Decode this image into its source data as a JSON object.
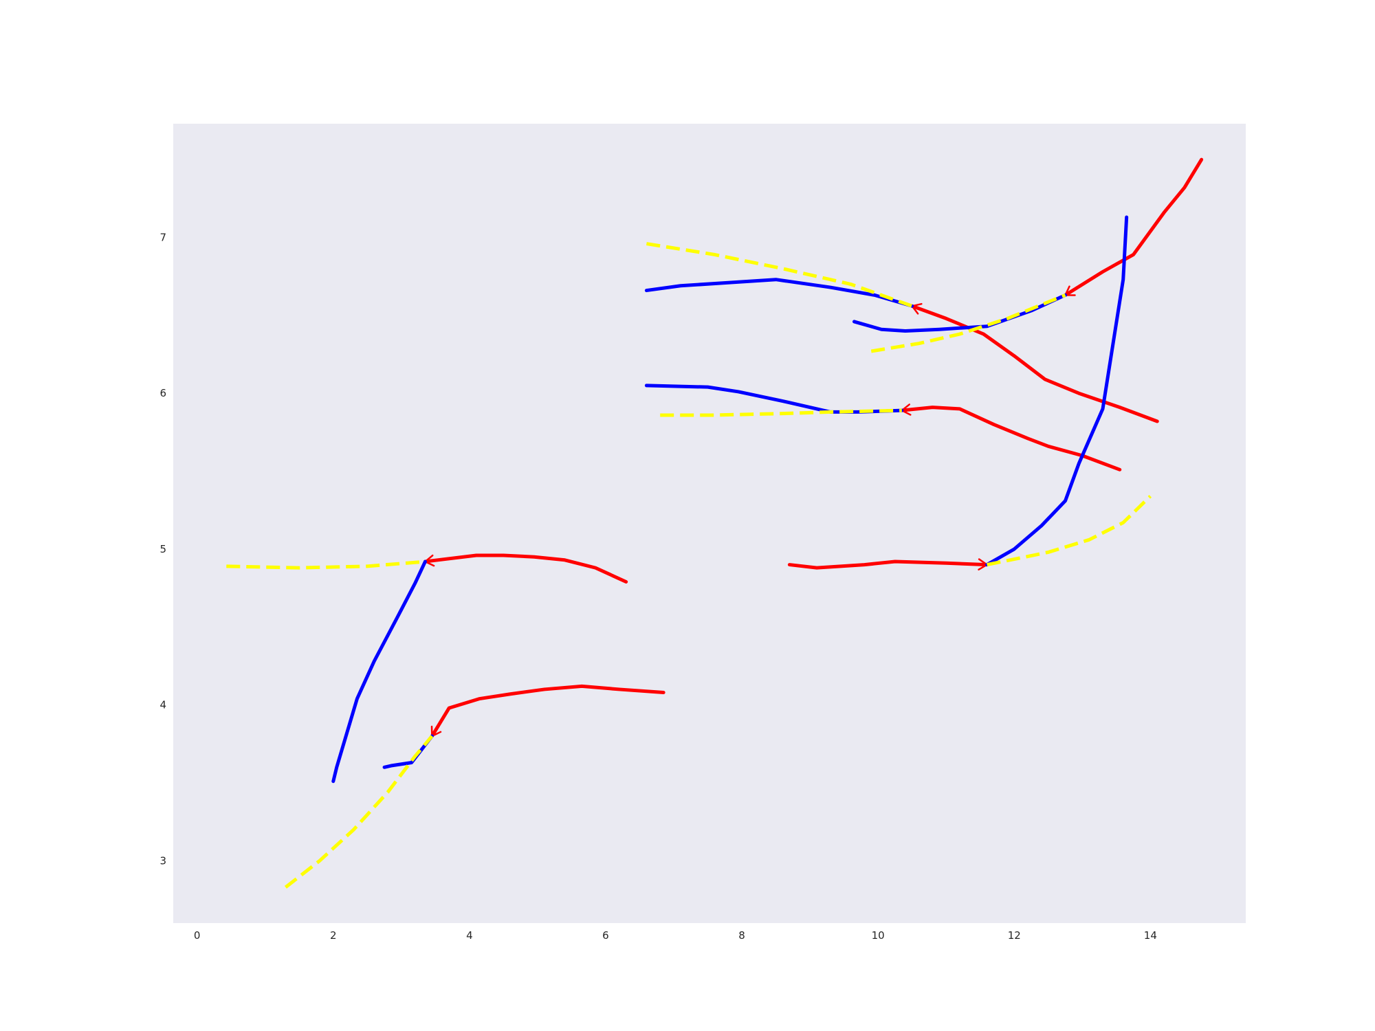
{
  "chart_data": {
    "type": "line",
    "title": "",
    "xlabel": "",
    "ylabel": "",
    "xlim": [
      -0.35,
      15.4
    ],
    "ylim": [
      2.6,
      7.73
    ],
    "x_ticks": [
      0,
      2,
      4,
      6,
      8,
      10,
      12,
      14
    ],
    "y_ticks": [
      3,
      4,
      5,
      6,
      7
    ],
    "x_tick_labels": [
      "0",
      "2",
      "4",
      "6",
      "8",
      "10",
      "12",
      "14"
    ],
    "y_tick_labels": [
      "3",
      "4",
      "5",
      "6",
      "7"
    ],
    "grid": false,
    "legend": "none",
    "colors": {
      "plot_background": "#eaeaf2",
      "blue_track": "#0000ff",
      "red_track": "#ff0000",
      "yellow_prediction": "#ffff00"
    },
    "series": [
      {
        "group": "A",
        "color": "#0000ff",
        "dash": false,
        "marker": "none",
        "points": [
          [
            2.0,
            3.51
          ],
          [
            2.05,
            3.6
          ],
          [
            2.35,
            4.04
          ],
          [
            2.6,
            4.28
          ],
          [
            2.95,
            4.57
          ],
          [
            3.2,
            4.78
          ],
          [
            3.35,
            4.92
          ]
        ]
      },
      {
        "group": "A",
        "color": "#ff0000",
        "dash": false,
        "marker": "arrow-start",
        "points": [
          [
            3.35,
            4.92
          ],
          [
            4.1,
            4.96
          ],
          [
            4.5,
            4.96
          ],
          [
            4.95,
            4.95
          ],
          [
            5.4,
            4.93
          ],
          [
            5.85,
            4.88
          ],
          [
            6.3,
            4.79
          ]
        ]
      },
      {
        "group": "A",
        "color": "#ffff00",
        "dash": true,
        "marker": "none",
        "points": [
          [
            0.43,
            4.89
          ],
          [
            1.5,
            4.88
          ],
          [
            2.5,
            4.89
          ],
          [
            3.35,
            4.92
          ]
        ]
      },
      {
        "group": "B",
        "color": "#0000ff",
        "dash": false,
        "marker": "none",
        "points": [
          [
            2.75,
            3.6
          ],
          [
            2.85,
            3.61
          ],
          [
            3.15,
            3.63
          ],
          [
            3.45,
            3.8
          ]
        ]
      },
      {
        "group": "B",
        "color": "#ff0000",
        "dash": false,
        "marker": "arrow-start",
        "points": [
          [
            3.45,
            3.8
          ],
          [
            3.7,
            3.98
          ],
          [
            4.15,
            4.04
          ],
          [
            4.6,
            4.07
          ],
          [
            5.1,
            4.1
          ],
          [
            5.65,
            4.12
          ],
          [
            6.2,
            4.1
          ],
          [
            6.85,
            4.08
          ]
        ]
      },
      {
        "group": "B",
        "color": "#ffff00",
        "dash": true,
        "marker": "none",
        "points": [
          [
            1.3,
            2.83
          ],
          [
            1.8,
            3.0
          ],
          [
            2.3,
            3.2
          ],
          [
            2.8,
            3.44
          ],
          [
            3.2,
            3.67
          ],
          [
            3.45,
            3.8
          ]
        ]
      },
      {
        "group": "C",
        "color": "#0000ff",
        "dash": false,
        "marker": "none",
        "points": [
          [
            6.6,
            6.66
          ],
          [
            7.1,
            6.69
          ],
          [
            7.8,
            6.71
          ],
          [
            8.5,
            6.73
          ],
          [
            9.3,
            6.68
          ],
          [
            9.95,
            6.63
          ],
          [
            10.5,
            6.56
          ]
        ]
      },
      {
        "group": "C",
        "color": "#ff0000",
        "dash": false,
        "marker": "arrow-start",
        "points": [
          [
            10.5,
            6.56
          ],
          [
            11.0,
            6.48
          ],
          [
            11.55,
            6.38
          ],
          [
            12.0,
            6.24
          ],
          [
            12.45,
            6.09
          ],
          [
            12.95,
            6.0
          ],
          [
            13.55,
            5.91
          ],
          [
            14.1,
            5.82
          ]
        ]
      },
      {
        "group": "C",
        "color": "#ffff00",
        "dash": true,
        "marker": "none",
        "points": [
          [
            6.6,
            6.96
          ],
          [
            7.6,
            6.89
          ],
          [
            8.6,
            6.8
          ],
          [
            9.6,
            6.7
          ],
          [
            10.5,
            6.56
          ]
        ]
      },
      {
        "group": "D",
        "color": "#0000ff",
        "dash": false,
        "marker": "none",
        "points": [
          [
            9.65,
            6.46
          ],
          [
            10.05,
            6.41
          ],
          [
            10.4,
            6.4
          ],
          [
            10.9,
            6.41
          ],
          [
            11.6,
            6.43
          ],
          [
            12.25,
            6.53
          ],
          [
            12.75,
            6.63
          ]
        ]
      },
      {
        "group": "D",
        "color": "#ff0000",
        "dash": false,
        "marker": "arrow-start",
        "points": [
          [
            12.75,
            6.63
          ],
          [
            13.3,
            6.78
          ],
          [
            13.75,
            6.89
          ],
          [
            14.2,
            7.16
          ],
          [
            14.5,
            7.32
          ],
          [
            14.75,
            7.5
          ]
        ]
      },
      {
        "group": "D",
        "color": "#ffff00",
        "dash": true,
        "marker": "none",
        "points": [
          [
            9.9,
            6.27
          ],
          [
            10.6,
            6.32
          ],
          [
            11.2,
            6.38
          ],
          [
            11.9,
            6.48
          ],
          [
            12.75,
            6.63
          ]
        ]
      },
      {
        "group": "E",
        "color": "#0000ff",
        "dash": false,
        "marker": "none",
        "points": [
          [
            6.6,
            6.05
          ],
          [
            7.5,
            6.04
          ],
          [
            7.95,
            6.01
          ],
          [
            8.6,
            5.95
          ],
          [
            9.3,
            5.88
          ],
          [
            9.7,
            5.88
          ],
          [
            10.35,
            5.89
          ]
        ]
      },
      {
        "group": "E",
        "color": "#ff0000",
        "dash": false,
        "marker": "arrow-start",
        "points": [
          [
            10.35,
            5.89
          ],
          [
            10.8,
            5.91
          ],
          [
            11.2,
            5.9
          ],
          [
            11.7,
            5.8
          ],
          [
            12.2,
            5.71
          ],
          [
            12.5,
            5.66
          ],
          [
            13.0,
            5.6
          ],
          [
            13.55,
            5.51
          ]
        ]
      },
      {
        "group": "E",
        "color": "#ffff00",
        "dash": true,
        "marker": "none",
        "points": [
          [
            6.8,
            5.86
          ],
          [
            7.6,
            5.86
          ],
          [
            8.6,
            5.87
          ],
          [
            9.3,
            5.88
          ],
          [
            10.35,
            5.89
          ]
        ]
      },
      {
        "group": "F",
        "color": "#0000ff",
        "dash": false,
        "marker": "none",
        "points": [
          [
            11.6,
            4.9
          ],
          [
            12.0,
            5.0
          ],
          [
            12.4,
            5.15
          ],
          [
            12.75,
            5.31
          ],
          [
            12.95,
            5.55
          ],
          [
            13.3,
            5.9
          ],
          [
            13.6,
            6.73
          ],
          [
            13.65,
            7.13
          ]
        ]
      },
      {
        "group": "F",
        "color": "#ff0000",
        "dash": false,
        "marker": "arrow-end",
        "points": [
          [
            8.7,
            4.9
          ],
          [
            9.1,
            4.88
          ],
          [
            9.8,
            4.9
          ],
          [
            10.25,
            4.92
          ],
          [
            11.0,
            4.91
          ],
          [
            11.6,
            4.9
          ]
        ]
      },
      {
        "group": "F",
        "color": "#ffff00",
        "dash": true,
        "marker": "none",
        "points": [
          [
            11.6,
            4.9
          ],
          [
            12.5,
            4.98
          ],
          [
            13.1,
            5.06
          ],
          [
            13.6,
            5.17
          ],
          [
            14.0,
            5.34
          ]
        ]
      }
    ]
  }
}
